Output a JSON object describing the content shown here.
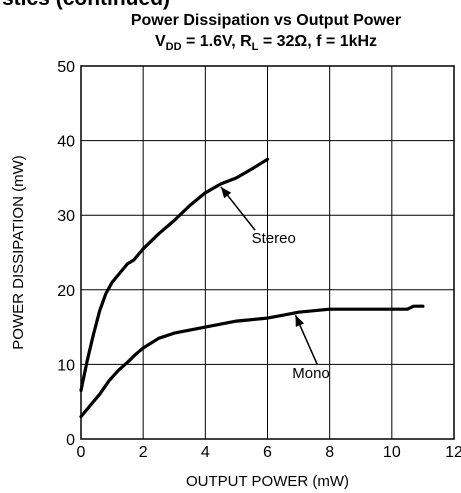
{
  "page": {
    "clipped_heading": "stics (continued)"
  },
  "chart_data": {
    "type": "line",
    "title_line1": "Power Dissipation vs Output Power",
    "title_line2": {
      "v_main": "V",
      "v_sub": "DD",
      "v_rest": " = 1.6V, R",
      "r_sub": "L",
      "r_rest": " = 32Ω, f = 1kHz"
    },
    "xlabel": "OUTPUT POWER (mW)",
    "ylabel": "POWER DISSIPATION (mW)",
    "xlim": [
      0,
      12
    ],
    "ylim": [
      0,
      50
    ],
    "x_ticks": [
      "0",
      "2",
      "4",
      "6",
      "8",
      "10",
      "12"
    ],
    "y_ticks": [
      "0",
      "10",
      "20",
      "30",
      "40",
      "50"
    ],
    "grid": true,
    "series": [
      {
        "name": "Stereo",
        "x": [
          0,
          0.2,
          0.4,
          0.6,
          0.8,
          1.0,
          1.2,
          1.5,
          1.7,
          2.0,
          2.5,
          3.0,
          3.5,
          4.0,
          4.5,
          5.0,
          5.5,
          6.0
        ],
        "y": [
          6.5,
          10.5,
          14,
          17.2,
          19.5,
          21,
          22,
          23.5,
          24,
          25.5,
          27.5,
          29.3,
          31.3,
          33,
          34.2,
          35,
          36.2,
          37.5
        ]
      },
      {
        "name": "Mono",
        "x": [
          0,
          0.3,
          0.6,
          0.9,
          1.2,
          1.5,
          1.8,
          2.0,
          2.5,
          3.0,
          3.5,
          4.0,
          4.5,
          5.0,
          5.5,
          6.0,
          6.5,
          7.0,
          7.5,
          8.0,
          8.5,
          9.0,
          9.5,
          10.0,
          10.5,
          10.7,
          11.0
        ],
        "y": [
          3,
          4.5,
          6,
          7.8,
          9.2,
          10.3,
          11.5,
          12.2,
          13.5,
          14.2,
          14.6,
          15.0,
          15.4,
          15.8,
          16.0,
          16.2,
          16.6,
          17.0,
          17.2,
          17.4,
          17.4,
          17.4,
          17.4,
          17.4,
          17.4,
          17.8,
          17.8
        ]
      }
    ],
    "annotations": [
      {
        "text": "Stereo",
        "label_x": 6.2,
        "label_y": 26.3,
        "arrow_from": [
          5.6,
          28
        ],
        "arrow_to": [
          4.5,
          33.8
        ]
      },
      {
        "text": "Mono",
        "label_x": 7.4,
        "label_y": 8.2,
        "arrow_from": [
          7.6,
          10
        ],
        "arrow_to": [
          6.9,
          16.6
        ]
      }
    ],
    "colors": {
      "line": "#000000",
      "grid": "#000000",
      "background": "#ffffff"
    }
  }
}
